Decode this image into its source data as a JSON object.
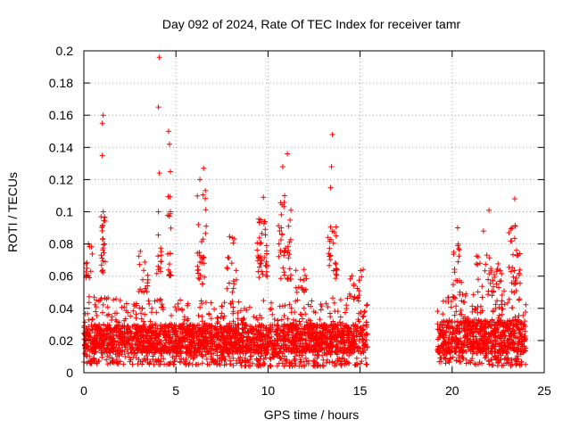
{
  "chart_data": {
    "type": "scatter",
    "title": "Day 092 of 2024, Rate Of TEC Index for receiver tamr",
    "xlabel": "GPS time / hours",
    "ylabel": "ROTI / TECUs",
    "xlim": [
      0,
      25
    ],
    "ylim": [
      0,
      0.2
    ],
    "x_ticks": [
      "0",
      "5",
      "10",
      "15",
      "20",
      "25"
    ],
    "y_ticks": [
      "0",
      "0.02",
      "0.04",
      "0.06",
      "0.08",
      "0.1",
      "0.12",
      "0.14",
      "0.16",
      "0.18",
      "0.2"
    ],
    "grid": true,
    "marker": "plus",
    "colors": {
      "points": "#ff0000",
      "grid": "#a0a0a0",
      "axis": "#000000"
    },
    "data_gap_hours": [
      15.4,
      19.2
    ],
    "notable_points": [
      {
        "x": 4.1,
        "y": 0.196
      },
      {
        "x": 4.05,
        "y": 0.165
      },
      {
        "x": 1.05,
        "y": 0.16
      },
      {
        "x": 1.0,
        "y": 0.155
      },
      {
        "x": 1.0,
        "y": 0.135
      },
      {
        "x": 4.6,
        "y": 0.15
      },
      {
        "x": 4.65,
        "y": 0.142
      },
      {
        "x": 13.5,
        "y": 0.148
      },
      {
        "x": 13.45,
        "y": 0.128
      },
      {
        "x": 13.4,
        "y": 0.115
      },
      {
        "x": 11.05,
        "y": 0.136
      },
      {
        "x": 10.8,
        "y": 0.128
      },
      {
        "x": 6.5,
        "y": 0.127
      },
      {
        "x": 6.3,
        "y": 0.12
      },
      {
        "x": 4.7,
        "y": 0.125
      },
      {
        "x": 4.1,
        "y": 0.124
      },
      {
        "x": 10.9,
        "y": 0.11
      },
      {
        "x": 9.75,
        "y": 0.109
      },
      {
        "x": 23.4,
        "y": 0.108
      },
      {
        "x": 22.0,
        "y": 0.101
      },
      {
        "x": 4.05,
        "y": 0.1
      },
      {
        "x": 4.7,
        "y": 0.1
      },
      {
        "x": 1.05,
        "y": 0.1
      },
      {
        "x": 0.25,
        "y": 0.08
      },
      {
        "x": 21.7,
        "y": 0.088
      },
      {
        "x": 20.3,
        "y": 0.09
      },
      {
        "x": 13.7,
        "y": 0.085
      },
      {
        "x": 9.6,
        "y": 0.095
      }
    ],
    "bursts": [
      {
        "x": 1.05,
        "spread": 0.12,
        "lo": 0.062,
        "hi": 0.098,
        "n": 25
      },
      {
        "x": 0.3,
        "spread": 0.2,
        "lo": 0.058,
        "hi": 0.08,
        "n": 12
      },
      {
        "x": 3.2,
        "spread": 0.3,
        "lo": 0.05,
        "hi": 0.076,
        "n": 18
      },
      {
        "x": 4.1,
        "spread": 0.15,
        "lo": 0.06,
        "hi": 0.09,
        "n": 12
      },
      {
        "x": 4.65,
        "spread": 0.1,
        "lo": 0.06,
        "hi": 0.11,
        "n": 18
      },
      {
        "x": 6.4,
        "spread": 0.25,
        "lo": 0.055,
        "hi": 0.115,
        "n": 30
      },
      {
        "x": 8.0,
        "spread": 0.3,
        "lo": 0.05,
        "hi": 0.085,
        "n": 18
      },
      {
        "x": 9.7,
        "spread": 0.3,
        "lo": 0.058,
        "hi": 0.1,
        "n": 40
      },
      {
        "x": 10.9,
        "spread": 0.35,
        "lo": 0.058,
        "hi": 0.108,
        "n": 40
      },
      {
        "x": 11.8,
        "spread": 0.3,
        "lo": 0.05,
        "hi": 0.07,
        "n": 15
      },
      {
        "x": 13.5,
        "spread": 0.25,
        "lo": 0.058,
        "hi": 0.092,
        "n": 25
      },
      {
        "x": 14.8,
        "spread": 0.4,
        "lo": 0.045,
        "hi": 0.065,
        "n": 18
      },
      {
        "x": 20.3,
        "spread": 0.25,
        "lo": 0.05,
        "hi": 0.08,
        "n": 16
      },
      {
        "x": 21.8,
        "spread": 0.5,
        "lo": 0.05,
        "hi": 0.08,
        "n": 22
      },
      {
        "x": 23.4,
        "spread": 0.35,
        "lo": 0.055,
        "hi": 0.092,
        "n": 28
      },
      {
        "x": 22.4,
        "spread": 0.3,
        "lo": 0.05,
        "hi": 0.07,
        "n": 14
      }
    ],
    "envelope": [
      {
        "x": 0.0,
        "lo": 0.006,
        "hi": 0.048
      },
      {
        "x": 1.5,
        "lo": 0.005,
        "hi": 0.048
      },
      {
        "x": 3.0,
        "lo": 0.005,
        "hi": 0.048
      },
      {
        "x": 5.0,
        "lo": 0.005,
        "hi": 0.046
      },
      {
        "x": 7.0,
        "lo": 0.005,
        "hi": 0.045
      },
      {
        "x": 9.0,
        "lo": 0.004,
        "hi": 0.045
      },
      {
        "x": 11.0,
        "lo": 0.004,
        "hi": 0.046
      },
      {
        "x": 13.0,
        "lo": 0.004,
        "hi": 0.047
      },
      {
        "x": 15.4,
        "lo": 0.005,
        "hi": 0.046
      },
      {
        "x": 19.2,
        "lo": 0.006,
        "hi": 0.046
      },
      {
        "x": 21.0,
        "lo": 0.005,
        "hi": 0.05
      },
      {
        "x": 23.0,
        "lo": 0.004,
        "hi": 0.052
      },
      {
        "x": 24.0,
        "lo": 0.005,
        "hi": 0.05
      }
    ],
    "dense_band": [
      {
        "x": 0.0,
        "lo": 0.012,
        "hi": 0.03
      },
      {
        "x": 15.4,
        "lo": 0.012,
        "hi": 0.03
      },
      {
        "x": 19.2,
        "lo": 0.012,
        "hi": 0.032
      },
      {
        "x": 24.0,
        "lo": 0.012,
        "hi": 0.034
      }
    ]
  }
}
